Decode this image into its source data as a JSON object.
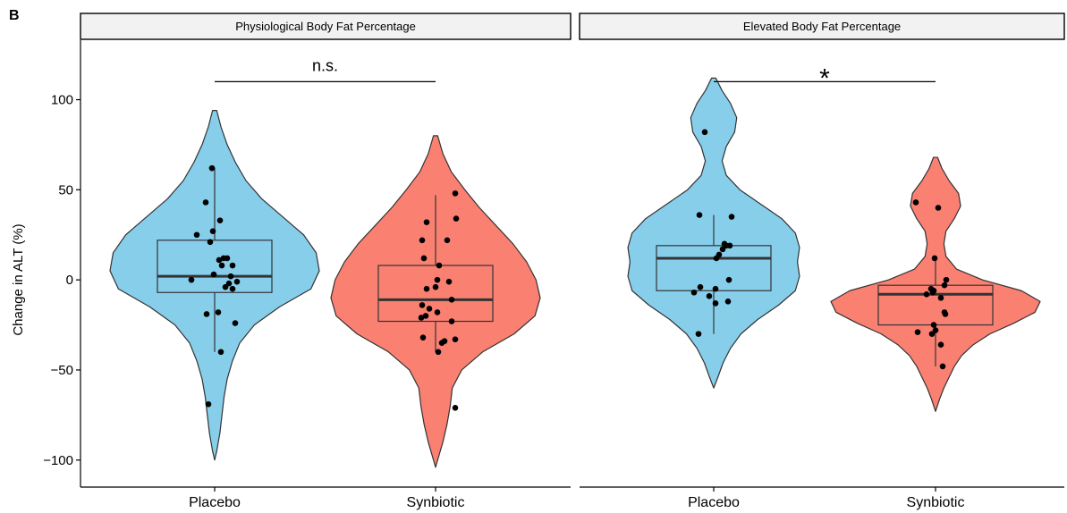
{
  "panel_label": "B",
  "chart_data": {
    "type": "violin",
    "ylabel": "Change in ALT (%)",
    "ylim": [
      -115,
      133
    ],
    "yticks": [
      -100,
      -50,
      0,
      50,
      100
    ],
    "ytick_labels": [
      "−100",
      "−50",
      "0",
      "50",
      "100"
    ],
    "categories": [
      "Placebo",
      "Synbiotic"
    ],
    "group_colors": {
      "Placebo": "#87CEEB",
      "Synbiotic": "#FA8072"
    },
    "grid": false,
    "panels": [
      {
        "title": "Physiological Body Fat Percentage",
        "significance": {
          "label": "n.s.",
          "y": 110
        },
        "groups": [
          {
            "name": "Placebo",
            "box": {
              "whisker_low": -40,
              "q1": -7,
              "median": 2,
              "q3": 22,
              "whisker_high": 62
            },
            "violin": {
              "min": -100,
              "max": 94,
              "profile": [
                [
                  94,
                  0.02
                ],
                [
                  85,
                  0.06
                ],
                [
                  75,
                  0.12
                ],
                [
                  65,
                  0.2
                ],
                [
                  55,
                  0.3
                ],
                [
                  45,
                  0.45
                ],
                [
                  35,
                  0.65
                ],
                [
                  25,
                  0.85
                ],
                [
                  15,
                  0.97
                ],
                [
                  5,
                  1.0
                ],
                [
                  -5,
                  0.92
                ],
                [
                  -15,
                  0.62
                ],
                [
                  -25,
                  0.38
                ],
                [
                  -35,
                  0.24
                ],
                [
                  -45,
                  0.17
                ],
                [
                  -55,
                  0.12
                ],
                [
                  -65,
                  0.09
                ],
                [
                  -75,
                  0.07
                ],
                [
                  -85,
                  0.05
                ],
                [
                  -95,
                  0.02
                ],
                [
                  -100,
                  0.0
                ]
              ]
            },
            "points": [
              [
                -0.03,
                62
              ],
              [
                -0.1,
                43
              ],
              [
                0.06,
                33
              ],
              [
                -0.2,
                25
              ],
              [
                -0.05,
                21
              ],
              [
                -0.02,
                27
              ],
              [
                0.1,
                12
              ],
              [
                0.05,
                11
              ],
              [
                0.14,
                12
              ],
              [
                0.08,
                8
              ],
              [
                0.2,
                8
              ],
              [
                -0.01,
                3
              ],
              [
                0.18,
                2
              ],
              [
                0.25,
                -1
              ],
              [
                -0.26,
                0
              ],
              [
                0.12,
                -4
              ],
              [
                0.2,
                -5
              ],
              [
                0.16,
                -2
              ],
              [
                -0.09,
                -19
              ],
              [
                0.04,
                -18
              ],
              [
                0.23,
                -24
              ],
              [
                0.07,
                -40
              ],
              [
                -0.07,
                -69
              ]
            ]
          },
          {
            "name": "Synbiotic",
            "box": {
              "whisker_low": -40,
              "q1": -23,
              "median": -11,
              "q3": 8,
              "whisker_high": 47
            },
            "violin": {
              "min": -104,
              "max": 80,
              "profile": [
                [
                  80,
                  0.02
                ],
                [
                  70,
                  0.07
                ],
                [
                  60,
                  0.15
                ],
                [
                  50,
                  0.28
                ],
                [
                  40,
                  0.42
                ],
                [
                  30,
                  0.58
                ],
                [
                  20,
                  0.74
                ],
                [
                  10,
                  0.87
                ],
                [
                  0,
                  0.96
                ],
                [
                  -10,
                  1.0
                ],
                [
                  -20,
                  0.95
                ],
                [
                  -30,
                  0.75
                ],
                [
                  -40,
                  0.45
                ],
                [
                  -50,
                  0.25
                ],
                [
                  -60,
                  0.16
                ],
                [
                  -70,
                  0.14
                ],
                [
                  -80,
                  0.11
                ],
                [
                  -90,
                  0.07
                ],
                [
                  -100,
                  0.02
                ],
                [
                  -104,
                  0.0
                ]
              ]
            },
            "points": [
              [
                0.22,
                48
              ],
              [
                -0.1,
                32
              ],
              [
                0.23,
                34
              ],
              [
                -0.15,
                22
              ],
              [
                0.13,
                22
              ],
              [
                -0.13,
                12
              ],
              [
                0.04,
                8
              ],
              [
                0.02,
                0
              ],
              [
                0.15,
                -1
              ],
              [
                0.0,
                -4
              ],
              [
                -0.1,
                -5
              ],
              [
                0.18,
                -11
              ],
              [
                -0.15,
                -14
              ],
              [
                -0.07,
                -16
              ],
              [
                0.02,
                -18
              ],
              [
                -0.11,
                -20
              ],
              [
                -0.16,
                -21
              ],
              [
                0.18,
                -23
              ],
              [
                -0.14,
                -32
              ],
              [
                0.1,
                -34
              ],
              [
                0.07,
                -35
              ],
              [
                0.22,
                -33
              ],
              [
                0.03,
                -40
              ],
              [
                0.22,
                -71
              ]
            ]
          }
        ]
      },
      {
        "title": "Elevated Body Fat Percentage",
        "significance": {
          "label": "*",
          "y": 110
        },
        "groups": [
          {
            "name": "Placebo",
            "box": {
              "whisker_low": -30,
              "q1": -6,
              "median": 12,
              "q3": 19,
              "whisker_high": 36
            },
            "violin": {
              "min": -60,
              "max": 112,
              "profile": [
                [
                  112,
                  0.02
                ],
                [
                  105,
                  0.08
                ],
                [
                  98,
                  0.16
                ],
                [
                  90,
                  0.22
                ],
                [
                  82,
                  0.2
                ],
                [
                  74,
                  0.12
                ],
                [
                  66,
                  0.08
                ],
                [
                  58,
                  0.12
                ],
                [
                  50,
                  0.25
                ],
                [
                  42,
                  0.45
                ],
                [
                  34,
                  0.65
                ],
                [
                  26,
                  0.78
                ],
                [
                  18,
                  0.82
                ],
                [
                  10,
                  0.8
                ],
                [
                  2,
                  0.82
                ],
                [
                  -6,
                  0.78
                ],
                [
                  -14,
                  0.62
                ],
                [
                  -22,
                  0.42
                ],
                [
                  -30,
                  0.26
                ],
                [
                  -38,
                  0.16
                ],
                [
                  -46,
                  0.09
                ],
                [
                  -54,
                  0.04
                ],
                [
                  -60,
                  0.0
                ]
              ]
            },
            "points": [
              [
                -0.1,
                82
              ],
              [
                -0.16,
                36
              ],
              [
                0.2,
                35
              ],
              [
                0.12,
                20
              ],
              [
                0.14,
                19
              ],
              [
                0.18,
                19
              ],
              [
                0.1,
                17
              ],
              [
                0.06,
                14
              ],
              [
                0.03,
                12
              ],
              [
                0.17,
                0
              ],
              [
                -0.15,
                -4
              ],
              [
                0.02,
                -5
              ],
              [
                -0.22,
                -7
              ],
              [
                -0.05,
                -9
              ],
              [
                0.16,
                -12
              ],
              [
                0.02,
                -13
              ],
              [
                -0.17,
                -30
              ]
            ]
          },
          {
            "name": "Synbiotic",
            "box": {
              "whisker_low": -48,
              "q1": -25,
              "median": -8,
              "q3": -3,
              "whisker_high": 12
            },
            "violin": {
              "min": -73,
              "max": 68,
              "profile": [
                [
                  68,
                  0.02
                ],
                [
                  62,
                  0.06
                ],
                [
                  55,
                  0.13
                ],
                [
                  48,
                  0.22
                ],
                [
                  41,
                  0.24
                ],
                [
                  34,
                  0.18
                ],
                [
                  27,
                  0.1
                ],
                [
                  20,
                  0.08
                ],
                [
                  13,
                  0.1
                ],
                [
                  6,
                  0.2
                ],
                [
                  0,
                  0.45
                ],
                [
                  -6,
                  0.82
                ],
                [
                  -12,
                  1.0
                ],
                [
                  -18,
                  0.95
                ],
                [
                  -24,
                  0.75
                ],
                [
                  -30,
                  0.52
                ],
                [
                  -36,
                  0.36
                ],
                [
                  -42,
                  0.25
                ],
                [
                  -48,
                  0.18
                ],
                [
                  -54,
                  0.13
                ],
                [
                  -60,
                  0.08
                ],
                [
                  -66,
                  0.04
                ],
                [
                  -73,
                  0.0
                ]
              ]
            },
            "points": [
              [
                -0.22,
                43
              ],
              [
                0.03,
                40
              ],
              [
                -0.2,
                -29
              ],
              [
                0.1,
                -18
              ],
              [
                -0.01,
                12
              ],
              [
                -0.03,
                -7
              ],
              [
                -0.05,
                -5
              ],
              [
                -0.02,
                -6
              ],
              [
                0.06,
                -10
              ],
              [
                0.1,
                -3
              ],
              [
                0.12,
                0
              ],
              [
                0.11,
                -19
              ],
              [
                -0.1,
                -8
              ],
              [
                -0.02,
                -25
              ],
              [
                0.0,
                -28
              ],
              [
                0.06,
                -36
              ],
              [
                0.08,
                -48
              ],
              [
                -0.04,
                -30
              ]
            ]
          }
        ]
      }
    ]
  }
}
